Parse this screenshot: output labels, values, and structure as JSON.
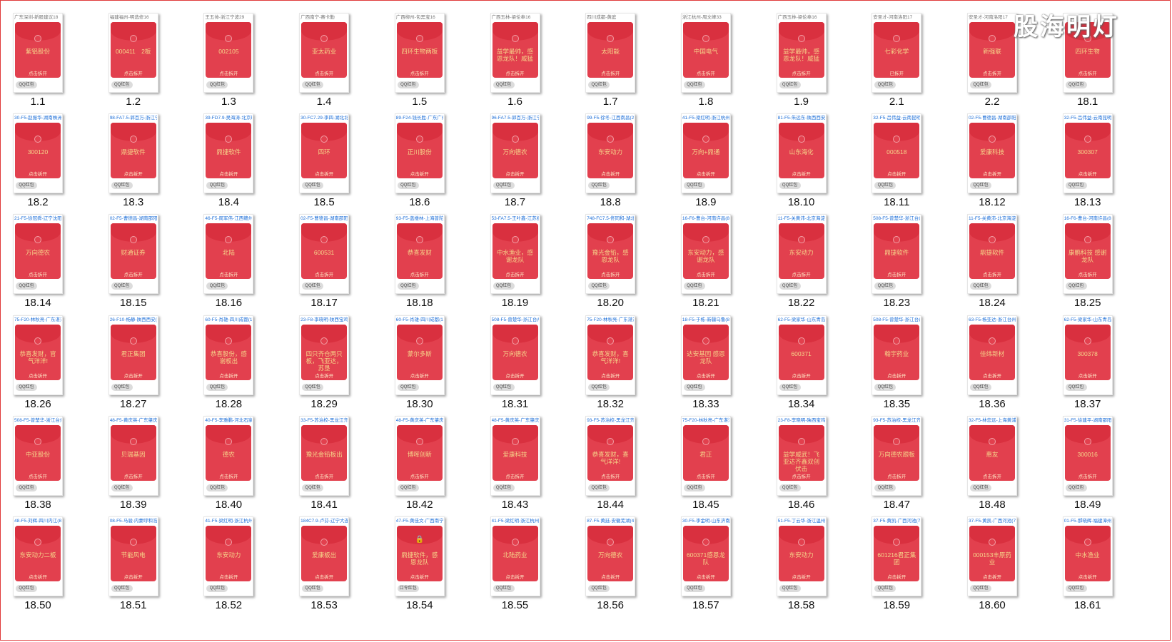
{
  "watermark": "股海明灯",
  "packet_open_text": "点击拆开",
  "qq_button": "QQ红包",
  "items": [
    {
      "label": "1.1",
      "title": "广东深圳-新股建议18",
      "text": "紫铝股份"
    },
    {
      "label": "1.2",
      "title": "福建福州-明选修16",
      "text": "000411　2板"
    },
    {
      "label": "1.3",
      "title": "王五帅-浙江宁波29",
      "text": "002105"
    },
    {
      "label": "1.4",
      "title": "广西南宁-赛卡勤",
      "text": "亚太药业"
    },
    {
      "label": "1.5",
      "title": "广西柳州-包黑宝16",
      "text": "四环生物两板"
    },
    {
      "label": "1.6",
      "title": "广西玉林-梁伦奉16",
      "text": "益学最帅，感恩龙队！威猛"
    },
    {
      "label": "1.7",
      "title": "四川成都-黄庭",
      "text": "太阳能"
    },
    {
      "label": "1.8",
      "title": "浙江杭州-周文峰33",
      "text": "中国电气"
    },
    {
      "label": "1.9",
      "title": "广西玉林-梁伦奉16",
      "text": "益学最帅，感恩龙队！威猛"
    },
    {
      "label": "2.1",
      "title": "安圣才-河南洛阳17",
      "text": "七彩化学",
      "open": "已拆开"
    },
    {
      "label": "2.2",
      "title": "安圣才-河南洛阳17",
      "text": "新强联"
    },
    {
      "label": "18.1",
      "title": "",
      "text": "四环生物"
    },
    {
      "label": "18.2",
      "title": "30-F5-赵振华-湖南株洲(",
      "blue": true,
      "text": "300120"
    },
    {
      "label": "18.3",
      "title": "98-FA7.5-郭百万-浙江宁",
      "blue": true,
      "text": "鼎捷软件"
    },
    {
      "label": "18.4",
      "title": "39-FD7.9-吴海涛-北京朝",
      "blue": true,
      "text": "鼎捷软件"
    },
    {
      "label": "18.5",
      "title": "30-FC7.29-李四-湖北北京",
      "blue": true,
      "text": "四环"
    },
    {
      "label": "18.6",
      "title": "89-F24-钱长胜-广东广州",
      "blue": true,
      "text": "正川股份"
    },
    {
      "label": "18.7",
      "title": "96-FA7.5-郭百万-浙江宁",
      "blue": true,
      "text": "万向德农"
    },
    {
      "label": "18.8",
      "title": "99-F5-徐冬-江西南昌(25",
      "blue": true,
      "text": "东安动力"
    },
    {
      "label": "18.9",
      "title": "41-F5-梁红明-浙江杭州(",
      "blue": true,
      "text": "万向+鼎通"
    },
    {
      "label": "18.10",
      "title": "81-F5-朱远东-陕西西安(",
      "blue": true,
      "text": "山东海化"
    },
    {
      "label": "18.11",
      "title": "32-F5-吕伟益-云南昆明",
      "blue": true,
      "text": "000518"
    },
    {
      "label": "18.12",
      "title": "02-F5-曹德昌-湖南邵阳(",
      "blue": true,
      "text": "爱康科技"
    },
    {
      "label": "18.13",
      "title": "32-F5-吕伟益-云南昆明",
      "blue": true,
      "text": "300307"
    },
    {
      "label": "18.14",
      "title": "21-F5-徐冠舜-辽宁沈阳(",
      "blue": true,
      "text": "万向德农"
    },
    {
      "label": "18.15",
      "title": "02-F5-曹德昌-湖南邵阳(",
      "blue": true,
      "text": "财通证券"
    },
    {
      "label": "18.16",
      "title": "46-F5-周军伟-江西赣州(",
      "blue": true,
      "text": "北陆"
    },
    {
      "label": "18.17",
      "title": "02-F5-曹德昌-湖南邵阳(",
      "blue": true,
      "text": "600531"
    },
    {
      "label": "18.18",
      "title": "93-F5-盖楼林-上海普陀(",
      "blue": true,
      "text": "恭喜发财"
    },
    {
      "label": "18.19",
      "title": "53-FA7.5-王叶鑫-江苏扬",
      "blue": true,
      "text": "中水渔业，感谢龙队"
    },
    {
      "label": "18.20",
      "title": "748-FC7.5-佟同和-湖北武",
      "blue": true,
      "text": "豫光金铅，感恩龙队"
    },
    {
      "label": "18.21",
      "title": "16-F6-曹台-河南许昌(84",
      "blue": true,
      "text": "东安动力，感谢龙队"
    },
    {
      "label": "18.22",
      "title": "11-F5-关黄沛-北京海淀(",
      "blue": true,
      "text": "东安动力"
    },
    {
      "label": "18.23",
      "title": "508-F5-曾楚华-浙江台州",
      "blue": true,
      "text": "鼎捷软件"
    },
    {
      "label": "18.24",
      "title": "11-F5-关黄沛-北京海淀(",
      "blue": true,
      "text": "鼎捷软件"
    },
    {
      "label": "18.25",
      "title": "16-F6-曹台-河南许昌(84",
      "blue": true,
      "text": "康鹏科技 感谢龙队"
    },
    {
      "label": "18.26",
      "title": "75-F20-林秋亮-广东湛江",
      "blue": true,
      "text": "恭喜发财，官气洋洋!"
    },
    {
      "label": "18.27",
      "title": "26-F10-杨静-陕西西安(7",
      "blue": true,
      "text": "君正集团"
    },
    {
      "label": "18.28",
      "title": "60-F5-肖雄-四川成都(10",
      "blue": true,
      "text": "恭喜股份，感谢板出"
    },
    {
      "label": "18.29",
      "title": "23-F8-李晓明-陕西宝鸡(",
      "blue": true,
      "text": "四只齐仓两只板，飞亚达，苏垦"
    },
    {
      "label": "18.30",
      "title": "60-F5-肖雄-四川成都(10",
      "blue": true,
      "text": "蒙尔多斯"
    },
    {
      "label": "18.31",
      "title": "508-F5-曾楚华-浙江台州",
      "blue": true,
      "text": "万向德农"
    },
    {
      "label": "18.32",
      "title": "75-F20-林秋亮-广东湛江",
      "blue": true,
      "text": "恭喜发财，喜气洋洋!"
    },
    {
      "label": "18.33",
      "title": "18-F5-于栋-新疆乌鲁(89",
      "blue": true,
      "text": "达安基因 感恩龙队"
    },
    {
      "label": "18.34",
      "title": "62-F5-梁家华-山东青岛(",
      "blue": true,
      "text": "600371"
    },
    {
      "label": "18.35",
      "title": "508-F5-曾楚华-浙江台州",
      "blue": true,
      "text": "翰宇药业"
    },
    {
      "label": "18.36",
      "title": "63-F5-杨亚达-浙江台州(",
      "blue": true,
      "text": "佳纬新材"
    },
    {
      "label": "18.37",
      "title": "62-F5-梁家华-山东青岛(",
      "blue": true,
      "text": "300378"
    },
    {
      "label": "18.38",
      "title": "508-F5-曾楚华-浙江台州",
      "blue": true,
      "text": "中亚股份"
    },
    {
      "label": "18.39",
      "title": "48-F5-黄庆英-广东肇庆(",
      "blue": true,
      "text": "贝瑞基因"
    },
    {
      "label": "18.40",
      "title": "40-F5-李雅鹏-河北石家",
      "blue": true,
      "text": "德农"
    },
    {
      "label": "18.41",
      "title": "33-F5-苏治校-黑龙江齐",
      "blue": true,
      "text": "豫光金铅板出"
    },
    {
      "label": "18.42",
      "title": "48-F5-黄庆英-广东肇庆(",
      "blue": true,
      "text": "博晖创新"
    },
    {
      "label": "18.43",
      "title": "48-F5-黄庆英-广东肇庆(",
      "blue": true,
      "text": "爱康科技"
    },
    {
      "label": "18.44",
      "title": "93-F5-苏治校-黑龙江齐",
      "blue": true,
      "text": "恭喜发财，喜气洋洋!"
    },
    {
      "label": "18.45",
      "title": "75-F20-林秋亮-广东湛江",
      "blue": true,
      "text": "君正"
    },
    {
      "label": "18.46",
      "title": "23-F8-李晓明-陕西宝鸡(",
      "blue": true,
      "text": "益学威武！飞亚达齐鑫双创伏击"
    },
    {
      "label": "18.47",
      "title": "93-F5-苏治校-黑龙江齐",
      "blue": true,
      "text": "万向德农跟板"
    },
    {
      "label": "18.48",
      "title": "32-F5-林忠远-上海黄浦(",
      "blue": true,
      "text": "惠友"
    },
    {
      "label": "18.49",
      "title": "31-F5-徐建平-湖南邵阳(",
      "blue": true,
      "text": "300016"
    },
    {
      "label": "18.50",
      "title": "48-F5-刘辉-四川内江(82",
      "blue": true,
      "text": "东安动力二板"
    },
    {
      "label": "18.51",
      "title": "08-F5-马骏-内蒙呼和浩特",
      "blue": true,
      "text": "节能风电"
    },
    {
      "label": "18.52",
      "title": "41-F5-梁红明-浙江杭州(",
      "blue": true,
      "text": "东安动力"
    },
    {
      "label": "18.53",
      "title": "184C7.9-卢芬-辽宁大连",
      "blue": true,
      "text": "爱康板出"
    },
    {
      "label": "18.54",
      "title": "47-F5-黄佳文-广西南宁(",
      "blue": true,
      "text": "鼎捷软件，感恩龙队",
      "lock": true,
      "btn": "口令红包"
    },
    {
      "label": "18.55",
      "title": "41-F5-梁红明-浙江杭州(",
      "blue": true,
      "text": "北陆药业"
    },
    {
      "label": "18.56",
      "title": "87-F5-黄廷-安徽芜湖(48",
      "blue": true,
      "text": "万向德农"
    },
    {
      "label": "18.57",
      "title": "30-F5-李金明-山东济南(",
      "blue": true,
      "text": "600371感恩龙队"
    },
    {
      "label": "18.58",
      "title": "51-F5-丁云华-浙江温州(",
      "blue": true,
      "text": "东安动力"
    },
    {
      "label": "18.59",
      "title": "37-F5-黄凯-广西河池(74",
      "blue": true,
      "text": "601216君正集团"
    },
    {
      "label": "18.60",
      "title": "37-F5-黄凯-广西河池(74",
      "blue": true,
      "text": "000153丰原药业"
    },
    {
      "label": "18.61",
      "title": "01-F5-郝晓辉-福建漳州(",
      "blue": true,
      "text": "中水渔业"
    }
  ]
}
